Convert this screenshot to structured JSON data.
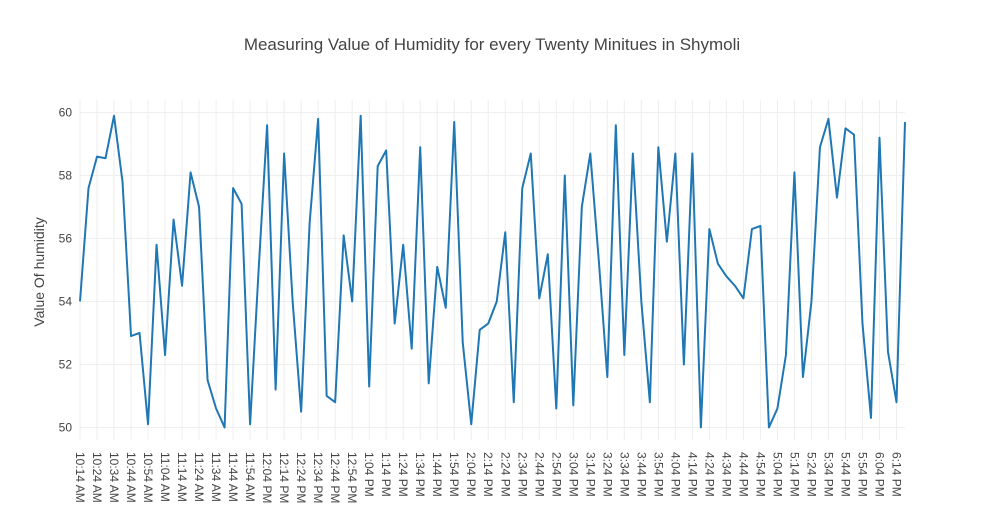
{
  "chart_data": {
    "type": "line",
    "title": "Measuring Value of Humidity for every Twenty Minitues in Shymoli",
    "ylabel": "Value Of humidity",
    "xlabel": "",
    "ylim": [
      49.6,
      60.4
    ],
    "yticks": [
      50,
      52,
      54,
      56,
      58,
      60
    ],
    "grid": true,
    "line_color": "#1f77b4",
    "x_tick_labels": [
      "10:14 AM",
      "10:24 AM",
      "10:34 AM",
      "10:44 AM",
      "10:54 AM",
      "11:04 AM",
      "11:14 AM",
      "11:24 AM",
      "11:34 AM",
      "11:44 AM",
      "11:54 AM",
      "12:04 PM",
      "12:14 PM",
      "12:24 PM",
      "12:34 PM",
      "12:44 PM",
      "12:54 PM",
      "1:04 PM",
      "1:14 PM",
      "1:24 PM",
      "1:34 PM",
      "1:44 PM",
      "1:54 PM",
      "2:04 PM",
      "2:14 PM",
      "2:24 PM",
      "2:34 PM",
      "2:44 PM",
      "2:54 PM",
      "3:04 PM",
      "3:14 PM",
      "3:24 PM",
      "3:34 PM",
      "3:44 PM",
      "3:54 PM",
      "4:04 PM",
      "4:14 PM",
      "4:24 PM",
      "4:34 PM",
      "4:44 PM",
      "4:54 PM",
      "5:04 PM",
      "5:14 PM",
      "5:24 PM",
      "5:34 PM",
      "5:44 PM",
      "5:54 PM",
      "6:04 PM",
      "6:14 PM"
    ],
    "series": [
      {
        "values": [
          54.0,
          57.6,
          58.6,
          58.55,
          59.9,
          57.8,
          52.9,
          53.0,
          50.1,
          55.8,
          52.3,
          56.6,
          54.5,
          58.1,
          57.0,
          51.5,
          50.6,
          50.0,
          57.6,
          57.1,
          50.1,
          55.0,
          59.6,
          51.2,
          58.7,
          54.0,
          50.5,
          56.5,
          59.8,
          51.0,
          50.8,
          56.1,
          54.0,
          59.9,
          51.3,
          58.3,
          58.8,
          53.3,
          55.8,
          52.5,
          58.9,
          51.4,
          55.1,
          53.8,
          59.7,
          52.7,
          50.1,
          53.1,
          53.3,
          54.0,
          56.2,
          50.8,
          57.6,
          58.7,
          54.1,
          55.5,
          50.6,
          58.0,
          50.7,
          57.0,
          58.7,
          55.3,
          51.6,
          59.6,
          52.3,
          58.7,
          54.0,
          50.8,
          58.9,
          55.9,
          58.7,
          52.0,
          58.7,
          50.0,
          56.3,
          55.2,
          54.8,
          54.5,
          54.1,
          56.3,
          56.4,
          50.0,
          50.6,
          52.3,
          58.1,
          51.6,
          54.0,
          58.9,
          59.8,
          57.3,
          59.5,
          59.3,
          53.3,
          50.3,
          59.2,
          52.4,
          50.8,
          59.7
        ]
      }
    ]
  }
}
